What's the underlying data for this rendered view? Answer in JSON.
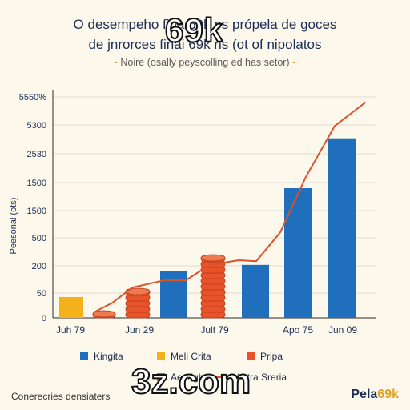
{
  "header": {
    "title_line1": "O desempeho fina 69k os própela de goces",
    "title_line2": "de jnrorces finai 69k ris (ot of nipolatos",
    "subtitle": "Noire (osally peyscolling ed has setor)",
    "subtitle_marker": "-"
  },
  "watermarks": {
    "top": "69k",
    "bottom": "3z.com"
  },
  "footer": {
    "left_text": "Conerecries densiaters",
    "brand_main": "Pela",
    "brand_accent": "69k"
  },
  "colors": {
    "blue": "#1f6fbd",
    "yellow": "#f3b21c",
    "orange": "#e8532a",
    "line": "#d9532b",
    "background": "#fdf8ec"
  },
  "chart_data": {
    "type": "bar",
    "ylabel": "Peesonal (ots)",
    "y_ticks": [
      "0",
      "50",
      "200",
      "500",
      "1500",
      "1500",
      "2530",
      "5300",
      "5550%"
    ],
    "x_tick_labels": [
      "Juh 79",
      "Jun 29",
      "Julf 79",
      "Apo 75",
      "Jun 09"
    ],
    "bars": [
      {
        "series": "Meli Crita",
        "style": "flat",
        "value": 42
      },
      {
        "series": "Pripa",
        "style": "coins",
        "value": 12
      },
      {
        "series": "Pripa",
        "style": "coins",
        "value": 70
      },
      {
        "series": "Kingita",
        "style": "flat",
        "value": 170
      },
      {
        "series": "Pripa",
        "style": "coins",
        "value": 350
      },
      {
        "series": "Kingita",
        "style": "flat",
        "value": 210
      },
      {
        "series": "Kingita",
        "style": "flat",
        "value": 1400
      },
      {
        "series": "Kingita",
        "style": "flat",
        "value": 4000
      }
    ],
    "trend_line": [
      12,
      30,
      80,
      120,
      120,
      210,
      260,
      250,
      600,
      1700,
      5200,
      5500
    ],
    "legend": [
      {
        "label": "Kingita",
        "kind": "swatch",
        "color": "#1f6fbd"
      },
      {
        "label": "Meli Crita",
        "kind": "swatch",
        "color": "#f3b21c"
      },
      {
        "label": "Pripa",
        "kind": "swatch",
        "color": "#e8532a"
      },
      {
        "label": "Aeerigha",
        "kind": "swatch",
        "color": "#e8532a"
      },
      {
        "label": "Antra Sreria",
        "kind": "line",
        "color": "#d9532b"
      }
    ],
    "grid": true,
    "legend_position": "bottom"
  }
}
